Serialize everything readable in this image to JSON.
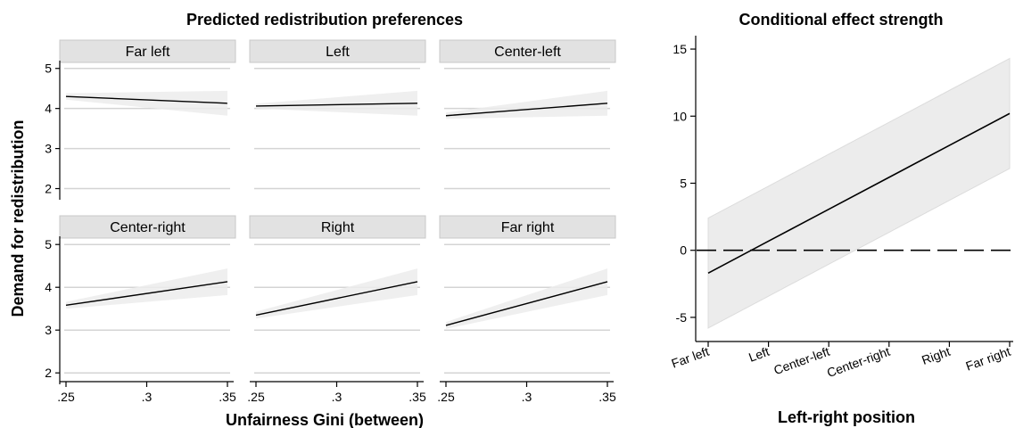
{
  "chart_data": [
    {
      "type": "line",
      "title": "Predicted redistribution preferences",
      "xlabel": "Unfairness Gini (between)",
      "ylabel": "Demand for redistribution",
      "x_ticks": [
        ".25",
        ".3",
        ".35"
      ],
      "x_tick_values": [
        0.25,
        0.3,
        0.35
      ],
      "y_ticks": [
        "2",
        "3",
        "4",
        "5"
      ],
      "y_tick_values": [
        2,
        3,
        4,
        5
      ],
      "xlim": [
        0.25,
        0.35
      ],
      "ylim": [
        1.9,
        5.15
      ],
      "grid": true,
      "panels": [
        {
          "label": "Far left",
          "x": [
            0.25,
            0.35
          ],
          "y": [
            4.3,
            4.13
          ],
          "ci_lower": [
            4.22,
            3.82
          ],
          "ci_upper": [
            4.38,
            4.44
          ]
        },
        {
          "label": "Left",
          "x": [
            0.25,
            0.35
          ],
          "y": [
            4.06,
            4.13
          ],
          "ci_lower": [
            4.0,
            3.82
          ],
          "ci_upper": [
            4.12,
            4.44
          ]
        },
        {
          "label": "Center-left",
          "x": [
            0.25,
            0.35
          ],
          "y": [
            3.82,
            4.13
          ],
          "ci_lower": [
            3.74,
            3.82
          ],
          "ci_upper": [
            3.9,
            4.44
          ]
        },
        {
          "label": "Center-right",
          "x": [
            0.25,
            0.35
          ],
          "y": [
            3.58,
            4.13
          ],
          "ci_lower": [
            3.5,
            3.82
          ],
          "ci_upper": [
            3.66,
            4.44
          ]
        },
        {
          "label": "Right",
          "x": [
            0.25,
            0.35
          ],
          "y": [
            3.35,
            4.13
          ],
          "ci_lower": [
            3.27,
            3.82
          ],
          "ci_upper": [
            3.43,
            4.44
          ]
        },
        {
          "label": "Far right",
          "x": [
            0.25,
            0.35
          ],
          "y": [
            3.11,
            4.13
          ],
          "ci_lower": [
            3.03,
            3.82
          ],
          "ci_upper": [
            3.19,
            4.44
          ]
        }
      ]
    },
    {
      "type": "line",
      "title": "Conditional effect strength",
      "xlabel": "Left-right position",
      "ylabel": "",
      "categories": [
        "Far left",
        "Left",
        "Center-left",
        "Center-right",
        "Right",
        "Far right"
      ],
      "y": [
        -1.7,
        0.68,
        3.06,
        5.44,
        7.82,
        10.2
      ],
      "ci_lower": [
        -5.8,
        -3.42,
        -1.04,
        1.34,
        3.72,
        6.1
      ],
      "ci_upper": [
        2.4,
        4.78,
        7.16,
        9.54,
        11.92,
        14.3
      ],
      "reference_line": 0,
      "y_ticks": [
        "-5",
        "0",
        "5",
        "10",
        "15"
      ],
      "y_tick_values": [
        -5,
        0,
        5,
        10,
        15
      ],
      "ylim": [
        -6.8,
        16
      ],
      "grid": false
    }
  ]
}
